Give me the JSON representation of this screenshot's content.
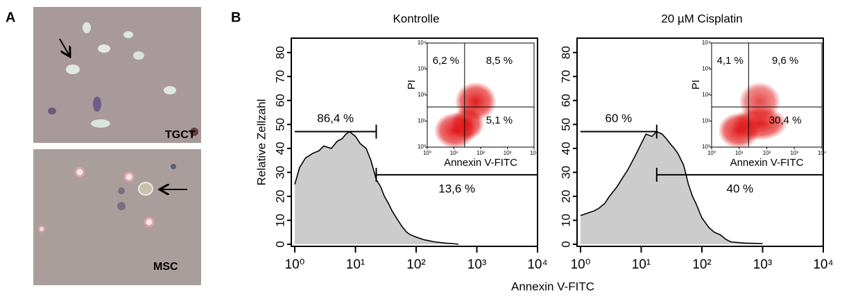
{
  "figure": {
    "panel_a": "A",
    "panel_b": "B",
    "image_top_label": "TGCT",
    "image_bottom_label": "MSC",
    "y_label": "Relative Zellzahl",
    "x_label": "Annexin V-FITC"
  },
  "chart_data": [
    {
      "type": "area",
      "title": "Kontrolle",
      "log_x": true,
      "x": [
        1,
        1.2,
        1.5,
        2,
        2.5,
        3,
        4,
        5,
        6,
        7,
        8,
        10,
        12,
        15,
        18,
        22,
        26,
        30,
        35,
        40,
        50,
        60,
        70,
        80,
        100,
        130,
        160,
        200,
        300,
        400,
        500
      ],
      "values": [
        25,
        32,
        36,
        38,
        39,
        41,
        40,
        43,
        44,
        46,
        47,
        45,
        42,
        40,
        35,
        27,
        24,
        20,
        17,
        14,
        10,
        7,
        5,
        4,
        3,
        2,
        1.5,
        1,
        0.5,
        0.3,
        0
      ],
      "color": "#cccccc",
      "xlim": [
        1,
        10000
      ],
      "ylim": [
        0,
        86
      ],
      "xticks": [
        {
          "value": 1,
          "label": "10⁰"
        },
        {
          "value": 10,
          "label": "10¹"
        },
        {
          "value": 100,
          "label": "10²"
        },
        {
          "value": 1000,
          "label": "10³"
        },
        {
          "value": 10000,
          "label": "10⁴"
        }
      ],
      "yticks": [
        0,
        10,
        20,
        30,
        40,
        50,
        60,
        70,
        80
      ],
      "gates": [
        {
          "start": 1,
          "end": 22,
          "level": 47,
          "value": 86.4,
          "label": "86,4 %"
        },
        {
          "start": 22,
          "end": 10000,
          "level": 29,
          "value": 13.6,
          "label": "13,6 %"
        }
      ],
      "inset": {
        "x_label": "Annexin V-FITC",
        "y_label": "PI",
        "xsplit": 25,
        "ysplit": 35,
        "color": "#e01010",
        "ticks": [
          {
            "value": 1,
            "label": "10⁰"
          },
          {
            "value": 10,
            "label": "10¹"
          },
          {
            "value": 100,
            "label": "10²"
          },
          {
            "value": 1000,
            "label": "10³"
          },
          {
            "value": 10000,
            "label": "10⁴"
          }
        ],
        "quadrants": [
          {
            "value": 6.2,
            "label": "6,2 %"
          },
          {
            "value": 8.5,
            "label": "8,5 %"
          },
          {
            "value": 5.1,
            "label": "5,1 %"
          }
        ]
      }
    },
    {
      "type": "area",
      "title": "20 µM Cisplatin",
      "log_x": true,
      "x": [
        1,
        1.3,
        1.7,
        2,
        2.5,
        3,
        4,
        5,
        6,
        8,
        10,
        12,
        15,
        18,
        22,
        26,
        30,
        35,
        40,
        50,
        60,
        70,
        80,
        100,
        130,
        160,
        200,
        250,
        300,
        500,
        1000
      ],
      "values": [
        12,
        13,
        14,
        15,
        17,
        20,
        24,
        28,
        31,
        37,
        42,
        46,
        45,
        47,
        46,
        44,
        42,
        40,
        38,
        33,
        25,
        20,
        17,
        11,
        7,
        5,
        4,
        2,
        1,
        0.5,
        0.3
      ],
      "color": "#cccccc",
      "xlim": [
        1,
        10000
      ],
      "ylim": [
        0,
        86
      ],
      "xticks": [
        {
          "value": 1,
          "label": "10⁰"
        },
        {
          "value": 10,
          "label": "10¹"
        },
        {
          "value": 100,
          "label": "10²"
        },
        {
          "value": 1000,
          "label": "10³"
        },
        {
          "value": 10000,
          "label": "10⁴"
        }
      ],
      "yticks": [
        0,
        10,
        20,
        30,
        40,
        50,
        60,
        70,
        80
      ],
      "gates": [
        {
          "start": 1,
          "end": 18,
          "level": 47,
          "value": 60,
          "label": "60 %"
        },
        {
          "start": 18,
          "end": 10000,
          "level": 29,
          "value": 40,
          "label": "40 %"
        }
      ],
      "inset": {
        "x_label": "Annexin V-FITC",
        "y_label": "PI",
        "xsplit": 22,
        "ysplit": 35,
        "color": "#e01010",
        "ticks": [
          {
            "value": 1,
            "label": "10⁰"
          },
          {
            "value": 10,
            "label": "10¹"
          },
          {
            "value": 100,
            "label": "10²"
          },
          {
            "value": 1000,
            "label": "10³"
          },
          {
            "value": 10000,
            "label": "10⁴"
          }
        ],
        "quadrants": [
          {
            "value": 4.1,
            "label": "4,1 %"
          },
          {
            "value": 9.6,
            "label": "9,6 %"
          },
          {
            "value": 30.4,
            "label": "30,4 %"
          }
        ]
      }
    }
  ]
}
